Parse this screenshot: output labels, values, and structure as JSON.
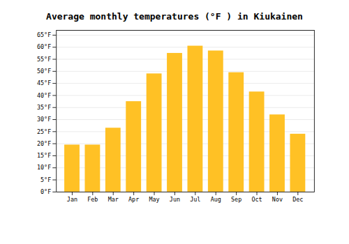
{
  "chart_data": {
    "type": "bar",
    "title": "Average monthly temperatures (°F ) in Kiukainen",
    "categories": [
      "Jan",
      "Feb",
      "Mar",
      "Apr",
      "May",
      "Jun",
      "Jul",
      "Aug",
      "Sep",
      "Oct",
      "Nov",
      "Dec"
    ],
    "values": [
      19.5,
      19.5,
      26.5,
      37.5,
      49,
      57.5,
      60.5,
      58.5,
      49.5,
      41.5,
      32,
      24
    ],
    "color": "#FFC125",
    "ylim": [
      0,
      67
    ],
    "yticks": [
      {
        "value": 0,
        "label": "0°F"
      },
      {
        "value": 5,
        "label": "5°F"
      },
      {
        "value": 10,
        "label": "10°F"
      },
      {
        "value": 15,
        "label": "15°F"
      },
      {
        "value": 20,
        "label": "20°F"
      },
      {
        "value": 25,
        "label": "25°F"
      },
      {
        "value": 30,
        "label": "30°F"
      },
      {
        "value": 35,
        "label": "35°F"
      },
      {
        "value": 40,
        "label": "40°F"
      },
      {
        "value": 45,
        "label": "45°F"
      },
      {
        "value": 50,
        "label": "50°F"
      },
      {
        "value": 55,
        "label": "55°F"
      },
      {
        "value": 60,
        "label": "60°F"
      },
      {
        "value": 65,
        "label": "65°F"
      }
    ],
    "grid": true
  }
}
